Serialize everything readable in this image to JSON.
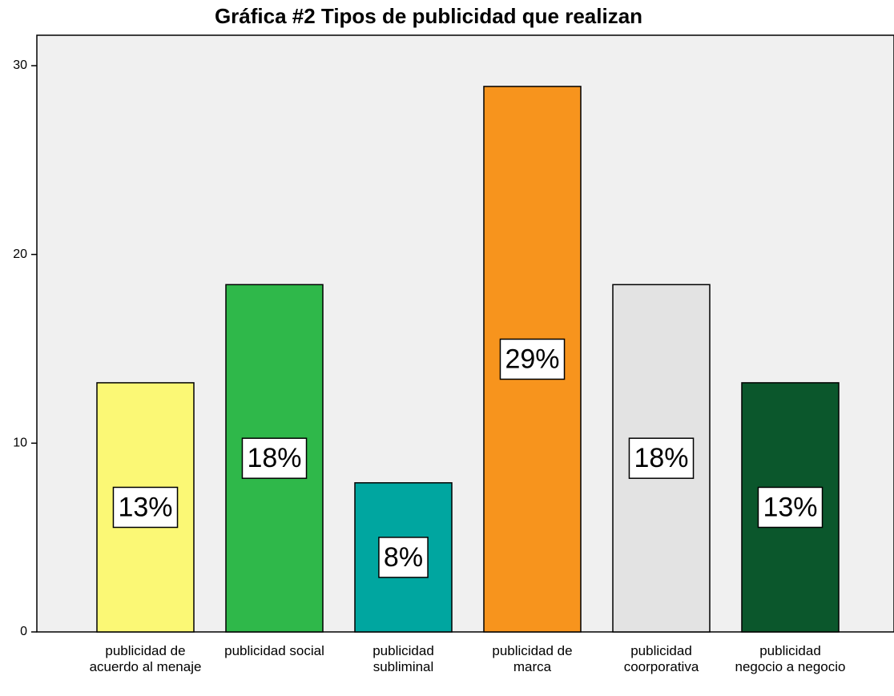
{
  "chart_data": {
    "type": "bar",
    "title": "Gráfica #2 Tipos de publicidad que realizan",
    "categories": [
      "publicidad de acuerdo al menaje",
      "publicidad social",
      "publicidad subliminal",
      "publicidad de marca",
      "publicidad coorporativa",
      "publicidad negocio a negocio"
    ],
    "values": [
      13.2,
      18.4,
      7.9,
      28.9,
      18.4,
      13.2
    ],
    "value_labels": [
      "13%",
      "18%",
      "8%",
      "29%",
      "18%",
      "13%"
    ],
    "colors": [
      "#fbf875",
      "#2fb84a",
      "#00a6a0",
      "#f7941d",
      "#e3e3e3",
      "#0b572c"
    ],
    "ylim": [
      0,
      30
    ],
    "yticks": [
      0,
      10,
      20,
      30
    ],
    "grid": false
  }
}
